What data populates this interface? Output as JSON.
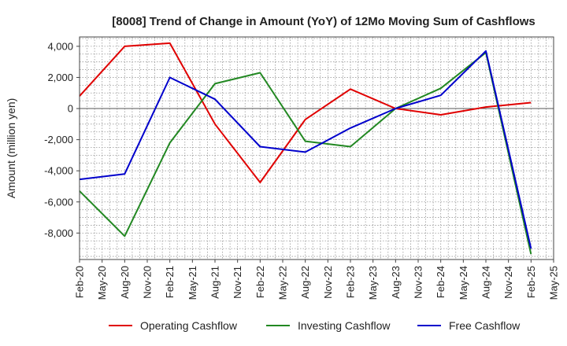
{
  "chart_data": {
    "type": "line",
    "title": "[8008]  Trend of Change in Amount (YoY) of 12Mo Moving Sum of Cashflows",
    "xlabel": "",
    "ylabel": "Amount (million yen)",
    "ylim": [
      -9700,
      4600
    ],
    "yticks": [
      4000,
      2000,
      0,
      -2000,
      -4000,
      -6000,
      -8000
    ],
    "ytick_labels": [
      "4,000",
      "2,000",
      "0",
      "-2,000",
      "-4,000",
      "-6,000",
      "-8,000"
    ],
    "categories": [
      "Feb-20",
      "May-20",
      "Aug-20",
      "Nov-20",
      "Feb-21",
      "May-21",
      "Aug-21",
      "Nov-21",
      "Feb-22",
      "May-22",
      "Aug-22",
      "Nov-22",
      "Feb-23",
      "May-23",
      "Aug-23",
      "Nov-23",
      "Feb-24",
      "May-24",
      "Aug-24",
      "Nov-24",
      "Feb-25",
      "May-25"
    ],
    "grid": true,
    "legend_position": "bottom",
    "series": [
      {
        "name": "Operating Cashflow",
        "color": "#e00000",
        "values": [
          800,
          null,
          4000,
          null,
          4200,
          null,
          -1000,
          null,
          -4750,
          null,
          -700,
          null,
          1250,
          null,
          0,
          null,
          -400,
          null,
          100,
          null,
          380,
          null
        ]
      },
      {
        "name": "Investing Cashflow",
        "color": "#228822",
        "values": [
          -5300,
          null,
          -8200,
          null,
          -2200,
          null,
          1600,
          null,
          2300,
          null,
          -2100,
          null,
          -2450,
          null,
          0,
          null,
          1300,
          null,
          3600,
          null,
          -9350,
          null
        ]
      },
      {
        "name": "Free Cashflow",
        "color": "#0000cc",
        "values": [
          -4550,
          null,
          -4200,
          null,
          2000,
          null,
          600,
          null,
          -2450,
          null,
          -2800,
          null,
          -1250,
          null,
          0,
          null,
          850,
          null,
          3700,
          null,
          -9000,
          null
        ]
      }
    ]
  }
}
